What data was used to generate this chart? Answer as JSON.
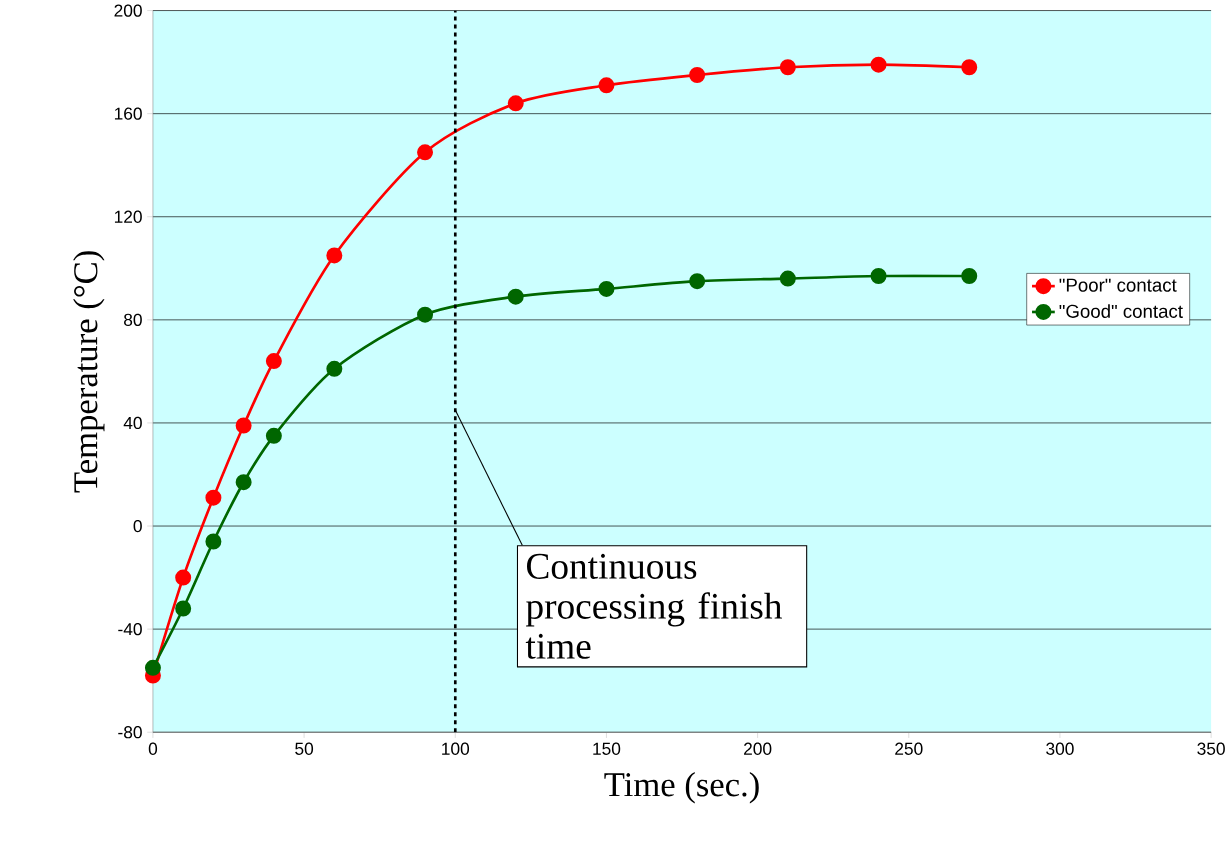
{
  "chart_data": {
    "type": "line",
    "xlabel": "Time (sec.)",
    "ylabel": "Temperature (°C)",
    "xlim": [
      0,
      350
    ],
    "ylim": [
      -80,
      200
    ],
    "xticks": [
      0,
      50,
      100,
      150,
      200,
      250,
      300,
      350
    ],
    "yticks": [
      -80,
      -40,
      0,
      40,
      80,
      120,
      160,
      200
    ],
    "grid": "y",
    "legend": "right",
    "marker": "circle",
    "line_style": "solid",
    "x": [
      0,
      10,
      20,
      30,
      40,
      60,
      90,
      120,
      150,
      180,
      210,
      240,
      270
    ],
    "series": [
      {
        "name": "\"Poor\" contact",
        "color": "#ff0000",
        "values": [
          -58,
          -20,
          11,
          39,
          64,
          105,
          145,
          164,
          171,
          175,
          178,
          179,
          178
        ]
      },
      {
        "name": "\"Good\" contact",
        "color": "#006600",
        "values": [
          -55,
          -32,
          -6,
          17,
          35,
          61,
          82,
          89,
          92,
          95,
          96,
          97,
          97
        ]
      }
    ],
    "ref_lines": [
      {
        "axis": "x",
        "value": 100,
        "line_style": "dashed",
        "color": "#000000"
      }
    ],
    "annotations": [
      {
        "text": "Continuous processing finish time",
        "x": 100,
        "y": 45
      }
    ]
  }
}
